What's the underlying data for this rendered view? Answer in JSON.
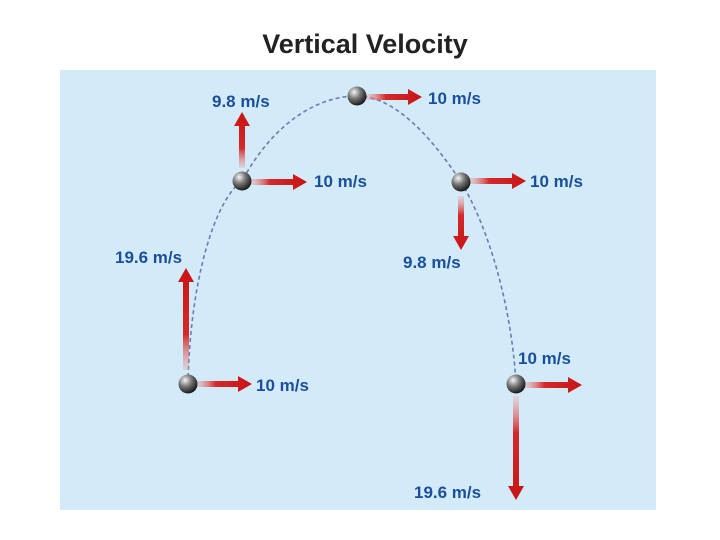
{
  "title": "Vertical Velocity",
  "positions": [
    {
      "horizontal": "10 m/s",
      "vertical": "19.6 m/s"
    },
    {
      "horizontal": "10 m/s",
      "vertical": "9.8 m/s"
    },
    {
      "horizontal": "10 m/s"
    },
    {
      "horizontal": "10 m/s",
      "vertical": "9.8 m/s"
    },
    {
      "horizontal": "10 m/s",
      "vertical": "19.6 m/s"
    }
  ]
}
